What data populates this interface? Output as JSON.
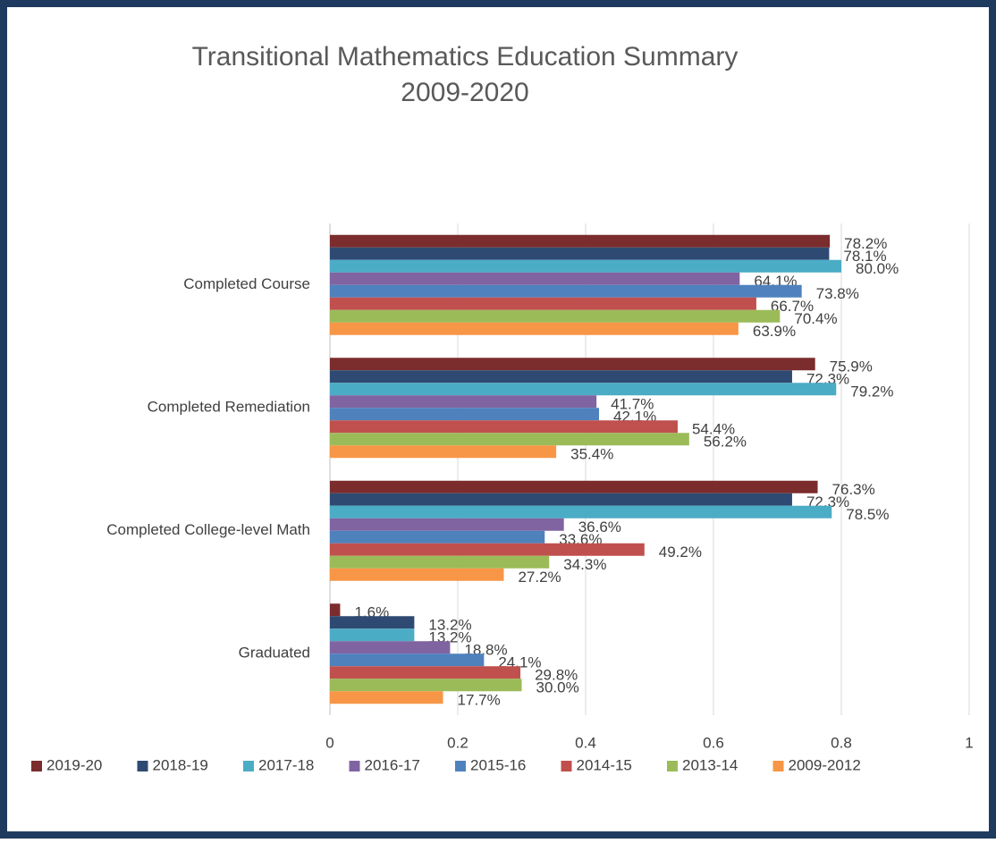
{
  "chart_data": {
    "type": "hbar",
    "title": [
      "Transitional Mathematics Education Summary",
      "2009-2020"
    ],
    "categories": [
      "Completed Course",
      "Completed Remediation",
      "Completed College-level Math",
      "Graduated"
    ],
    "series": [
      {
        "name": "2019-20",
        "color": "#7b2c2c",
        "values": [
          0.782,
          0.759,
          0.763,
          0.016
        ],
        "value_labels": [
          "78.2%",
          "75.9%",
          "76.3%",
          "1.6%"
        ]
      },
      {
        "name": "2018-19",
        "color": "#2e4a72",
        "values": [
          0.781,
          0.723,
          0.723,
          0.132
        ],
        "value_labels": [
          "78.1%",
          "72.3%",
          "72.3%",
          "13.2%"
        ]
      },
      {
        "name": "2017-18",
        "color": "#4bacc6",
        "values": [
          0.8,
          0.792,
          0.785,
          0.132
        ],
        "value_labels": [
          "80.0%",
          "79.2%",
          "78.5%",
          "13.2%"
        ]
      },
      {
        "name": "2016-17",
        "color": "#8064a2",
        "values": [
          0.641,
          0.417,
          0.366,
          0.188
        ],
        "value_labels": [
          "64.1%",
          "41.7%",
          "36.6%",
          "18.8%"
        ]
      },
      {
        "name": "2015-16",
        "color": "#4f81bd",
        "values": [
          0.738,
          0.421,
          0.336,
          0.241
        ],
        "value_labels": [
          "73.8%",
          "42.1%",
          "33.6%",
          "24.1%"
        ]
      },
      {
        "name": "2014-15",
        "color": "#c0504d",
        "values": [
          0.667,
          0.544,
          0.492,
          0.298
        ],
        "value_labels": [
          "66.7%",
          "54.4%",
          "49.2%",
          "29.8%"
        ]
      },
      {
        "name": "2013-14",
        "color": "#9bbb59",
        "values": [
          0.704,
          0.562,
          0.343,
          0.3
        ],
        "value_labels": [
          "70.4%",
          "56.2%",
          "34.3%",
          "30.0%"
        ]
      },
      {
        "name": "2009-2012",
        "color": "#f79646",
        "values": [
          0.639,
          0.354,
          0.272,
          0.177
        ],
        "value_labels": [
          "63.9%",
          "35.4%",
          "27.2%",
          "17.7%"
        ]
      }
    ],
    "xlim": [
      0,
      1
    ],
    "xticks": [
      0,
      0.2,
      0.4,
      0.6,
      0.8,
      1
    ],
    "grid": true,
    "legend": "bottom"
  }
}
